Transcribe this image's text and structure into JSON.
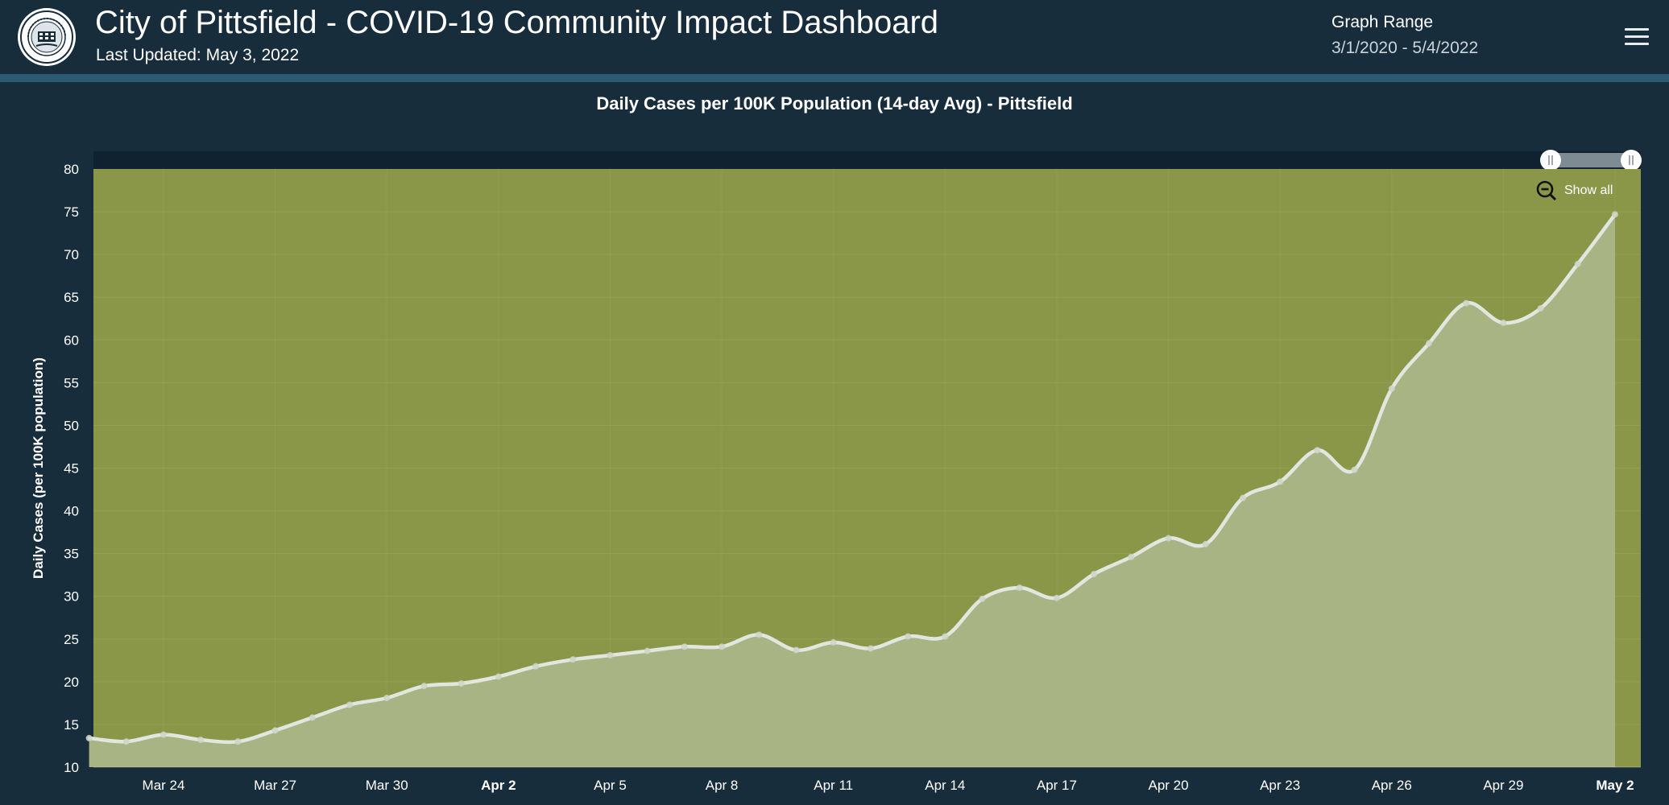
{
  "header": {
    "title": "City of Pittsfield - COVID-19 Community Impact Dashboard",
    "last_updated": "Last Updated: May 3, 2022",
    "graph_range_label": "Graph Range",
    "graph_range_value": "3/1/2020 - 5/4/2022"
  },
  "controls": {
    "show_all_label": "Show all"
  },
  "colors": {
    "background": "#172d3c",
    "plot_background": "#8a9748",
    "area_fill": "#a9b484",
    "line": "#e3e6df"
  },
  "chart_data": {
    "type": "area",
    "title": "Daily Cases per 100K Population (14-day Avg) - Pittsfield",
    "ylabel": "Daily Cases (per 100K population)",
    "xlabel": "",
    "ylim": [
      10,
      80
    ],
    "yticks": [
      10,
      15,
      20,
      25,
      30,
      35,
      40,
      45,
      50,
      55,
      60,
      65,
      70,
      75,
      80
    ],
    "xlim": [
      "2022-03-22",
      "2022-05-03"
    ],
    "xticks": [
      {
        "date": "2022-03-24",
        "label": "Mar 24",
        "bold": false
      },
      {
        "date": "2022-03-27",
        "label": "Mar 27",
        "bold": false
      },
      {
        "date": "2022-03-30",
        "label": "Mar 30",
        "bold": false
      },
      {
        "date": "2022-04-02",
        "label": "Apr 2",
        "bold": true
      },
      {
        "date": "2022-04-05",
        "label": "Apr 5",
        "bold": false
      },
      {
        "date": "2022-04-08",
        "label": "Apr 8",
        "bold": false
      },
      {
        "date": "2022-04-11",
        "label": "Apr 11",
        "bold": false
      },
      {
        "date": "2022-04-14",
        "label": "Apr 14",
        "bold": false
      },
      {
        "date": "2022-04-17",
        "label": "Apr 17",
        "bold": false
      },
      {
        "date": "2022-04-20",
        "label": "Apr 20",
        "bold": false
      },
      {
        "date": "2022-04-23",
        "label": "Apr 23",
        "bold": false
      },
      {
        "date": "2022-04-26",
        "label": "Apr 26",
        "bold": false
      },
      {
        "date": "2022-04-29",
        "label": "Apr 29",
        "bold": false
      },
      {
        "date": "2022-05-02",
        "label": "May 2",
        "bold": true
      }
    ],
    "grid": true,
    "series": [
      {
        "name": "",
        "x": [
          "2022-03-22",
          "2022-03-23",
          "2022-03-24",
          "2022-03-25",
          "2022-03-26",
          "2022-03-27",
          "2022-03-28",
          "2022-03-29",
          "2022-03-30",
          "2022-03-31",
          "2022-04-01",
          "2022-04-02",
          "2022-04-03",
          "2022-04-04",
          "2022-04-05",
          "2022-04-06",
          "2022-04-07",
          "2022-04-08",
          "2022-04-09",
          "2022-04-10",
          "2022-04-11",
          "2022-04-12",
          "2022-04-13",
          "2022-04-14",
          "2022-04-15",
          "2022-04-16",
          "2022-04-17",
          "2022-04-18",
          "2022-04-19",
          "2022-04-20",
          "2022-04-21",
          "2022-04-22",
          "2022-04-23",
          "2022-04-24",
          "2022-04-25",
          "2022-04-26",
          "2022-04-27",
          "2022-04-28",
          "2022-04-29",
          "2022-04-30",
          "2022-05-01",
          "2022-05-02"
        ],
        "values": [
          13.4,
          13.0,
          13.8,
          13.2,
          13.0,
          14.3,
          15.8,
          17.3,
          18.1,
          19.5,
          19.8,
          20.6,
          21.8,
          22.6,
          23.1,
          23.6,
          24.1,
          24.1,
          25.5,
          23.7,
          24.6,
          23.9,
          25.3,
          25.3,
          29.7,
          31.0,
          29.8,
          32.6,
          34.6,
          36.8,
          36.1,
          41.5,
          43.4,
          47.1,
          44.8,
          54.3,
          59.6,
          64.3,
          62.0,
          63.7,
          68.9,
          74.7
        ]
      }
    ]
  }
}
